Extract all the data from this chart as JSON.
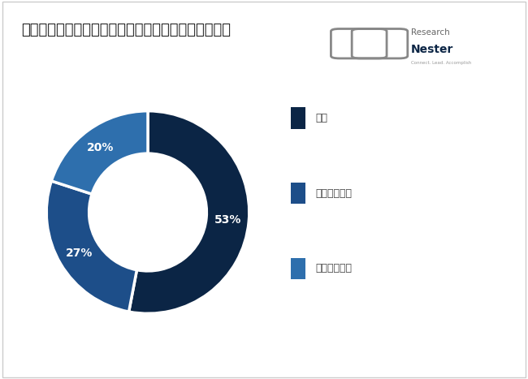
{
  "title": "血液透析と腹膜透析市場ーエンドユーザーによる分類",
  "slices": [
    53,
    27,
    20
  ],
  "labels": [
    "53%",
    "27%",
    "20%"
  ],
  "colors": [
    "#0b2545",
    "#1d4e89",
    "#2e6fad"
  ],
  "legend_labels": [
    "病院",
    "透析センター",
    "在宅医療施設"
  ],
  "legend_colors": [
    "#0b2545",
    "#1d4e89",
    "#2e6fad"
  ],
  "background_color": "#ffffff",
  "title_fontsize": 13,
  "label_fontsize": 10,
  "legend_fontsize": 9,
  "startangle": 90
}
